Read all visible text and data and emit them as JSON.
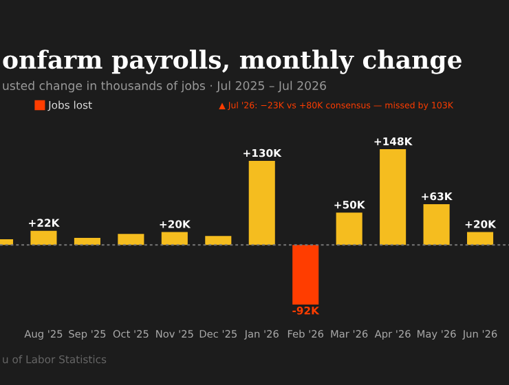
{
  "chart_data": {
    "type": "bar",
    "title": "onfarm payrolls, monthly change",
    "subtitle": "usted change in thousands of jobs · Jul 2025 – Jul 2026",
    "categories": [
      null,
      "Aug '25",
      "Sep '25",
      "Oct '25",
      "Nov '25",
      "Dec '25",
      "Jan '26",
      "Feb '26",
      "Mar '26",
      "Apr '26",
      "May '26",
      "Jun '26"
    ],
    "series": [
      {
        "color": "#f5bd1f",
        "values": [
          9,
          22,
          11,
          17,
          20,
          14,
          130,
          null,
          50,
          148,
          63,
          20
        ],
        "value_labels": [
          null,
          "+22K",
          null,
          null,
          "+20K",
          null,
          "+130K",
          null,
          "+50K",
          "+148K",
          "+63K",
          "+20K"
        ]
      },
      {
        "name": "Jobs lost",
        "color": "#ff3d00",
        "values": [
          null,
          null,
          null,
          null,
          null,
          null,
          null,
          -92,
          null,
          null,
          null,
          null
        ],
        "value_labels": [
          null,
          null,
          null,
          null,
          null,
          null,
          null,
          "-92K",
          null,
          null,
          null,
          null
        ]
      }
    ],
    "tick_labels": "x",
    "legend": "top left",
    "ref_lines": [
      {
        "axis": "y",
        "value": 0,
        "label": null,
        "color": "#777777",
        "line_style": "dashed"
      }
    ],
    "annotations": [
      "▲ Jul '26: −23K vs +80K consensus — missed by 103K",
      "u of Labor Statistics"
    ]
  }
}
